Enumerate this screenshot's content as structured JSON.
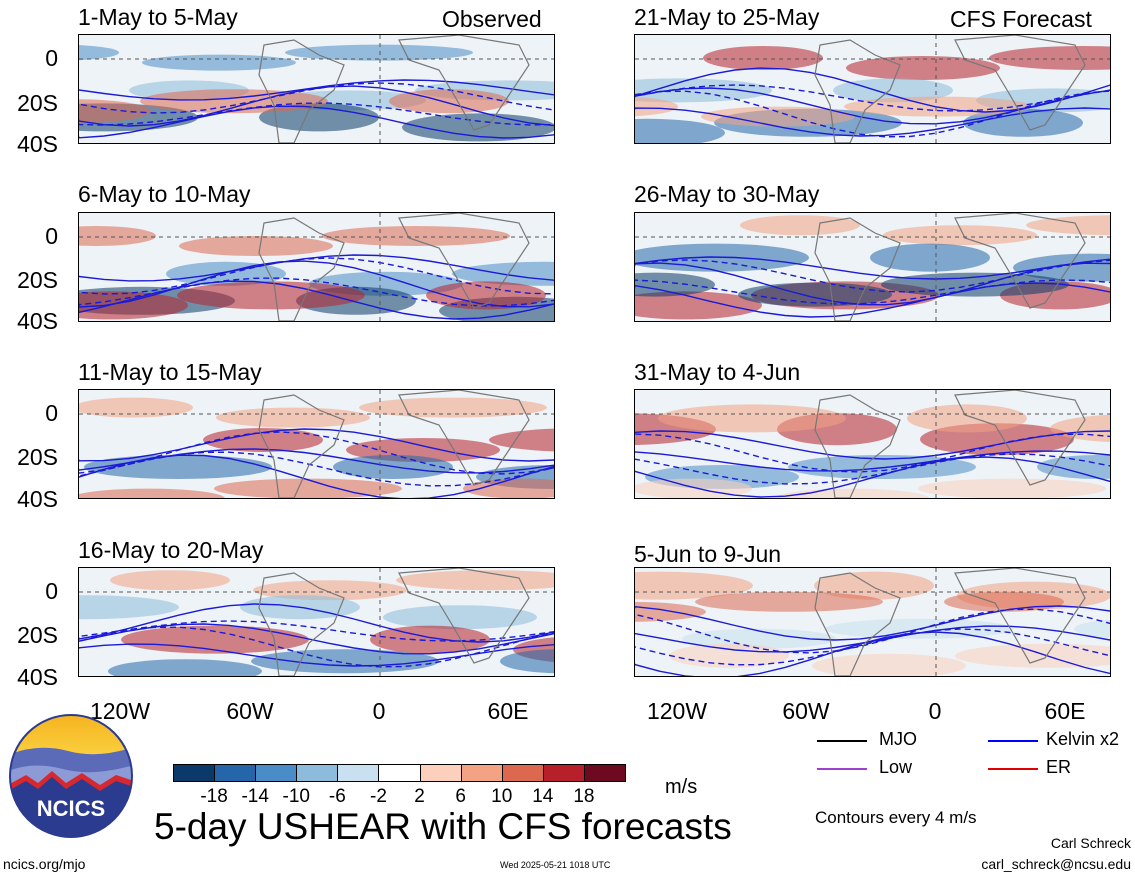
{
  "column_labels": {
    "left": "Observed",
    "right": "CFS Forecast"
  },
  "panels": [
    {
      "title": "1-May to 5-May",
      "kind": "observed"
    },
    {
      "title": "6-May to 10-May",
      "kind": "observed"
    },
    {
      "title": "11-May to 15-May",
      "kind": "observed"
    },
    {
      "title": "16-May to 20-May",
      "kind": "observed"
    },
    {
      "title": "21-May to 25-May",
      "kind": "forecast"
    },
    {
      "title": "26-May to 30-May",
      "kind": "forecast"
    },
    {
      "title": "31-May to 4-Jun",
      "kind": "forecast"
    },
    {
      "title": "5-Jun to 9-Jun",
      "kind": "forecast"
    }
  ],
  "axes": {
    "y_ticks": [
      "0",
      "20S",
      "40S"
    ],
    "x_ticks": [
      "120W",
      "60W",
      "0",
      "60E"
    ]
  },
  "legend": {
    "items": [
      {
        "label": "MJO",
        "color": "#000000"
      },
      {
        "label": "Kelvin x2",
        "color": "#0000ff"
      },
      {
        "label": "Low",
        "color": "#a040d0"
      },
      {
        "label": "ER",
        "color": "#e00000"
      }
    ],
    "contours_note": "Contours every 4 m/s"
  },
  "colorbar": {
    "unit": "m/s",
    "colors": [
      "#0b3a6a",
      "#2466a9",
      "#4a8cc7",
      "#8cbbdc",
      "#c8e0ef",
      "#ffffff",
      "#fcd0bd",
      "#f3a283",
      "#dc6850",
      "#b7202b",
      "#6e0a1f"
    ],
    "tick_labels": [
      "-18",
      "-14",
      "-10",
      "-6",
      "-2",
      "2",
      "6",
      "10",
      "14",
      "18"
    ]
  },
  "title": "5-day USHEAR with CFS forecasts",
  "footer": {
    "left": "ncics.org/mjo",
    "center": "Wed 2025-05-21 1018 UTC",
    "author": "Carl Schreck",
    "email": "carl_schreck@ncsu.edu"
  },
  "logo": {
    "text": "NCICS"
  },
  "chart_data": {
    "type": "heatmap",
    "title": "5-day USHEAR with CFS forecasts",
    "variable": "USHEAR",
    "unit": "m/s",
    "contour_interval": "4 m/s",
    "color_levels": [
      -18,
      -14,
      -10,
      -6,
      -2,
      2,
      6,
      10,
      14,
      18
    ],
    "x_ticks": [
      "120W",
      "60W",
      "0",
      "60E"
    ],
    "y_ticks": [
      "0",
      "20S",
      "40S"
    ],
    "legend": [
      "MJO",
      "Kelvin x2",
      "Low",
      "ER"
    ],
    "panels": [
      "1-May to 5-May",
      "6-May to 10-May",
      "11-May to 15-May",
      "16-May to 20-May",
      "21-May to 25-May",
      "26-May to 30-May",
      "31-May to 4-Jun",
      "5-Jun to 9-Jun"
    ]
  }
}
